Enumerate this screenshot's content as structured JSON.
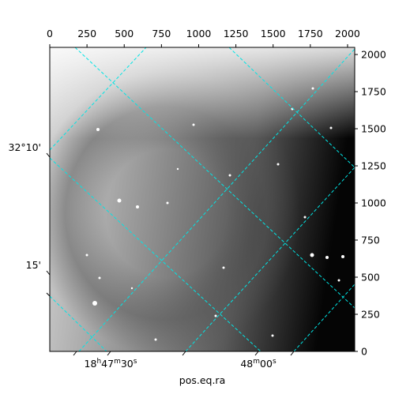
{
  "chart_data": {
    "type": "image",
    "xlabel": "pos.eq.ra",
    "xlim": [
      0,
      2048
    ],
    "ylim": [
      0,
      2048
    ],
    "xticks": [
      0,
      250,
      500,
      750,
      1000,
      1250,
      1500,
      1750,
      2000
    ],
    "yticks": [
      0,
      250,
      500,
      750,
      1000,
      1250,
      1500,
      1750,
      2000
    ],
    "ra_labels": [
      "18h47m30s",
      "48m00s"
    ],
    "dec_labels": [
      "32°10'",
      "15'"
    ],
    "grid_color": "#00e5e5"
  }
}
